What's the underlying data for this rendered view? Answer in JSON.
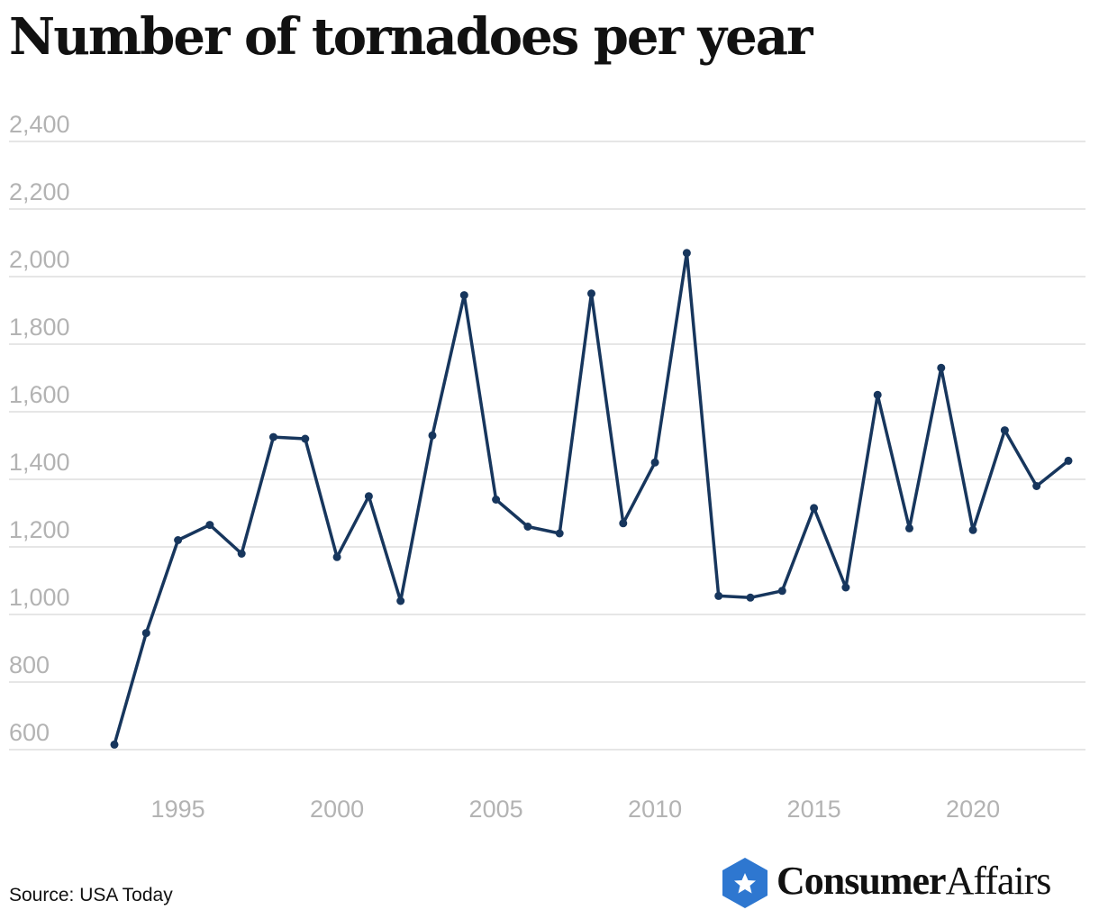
{
  "header": {
    "title": "Number of tornadoes per year"
  },
  "footer": {
    "source": "Source: USA Today"
  },
  "brand": {
    "bold": "Consumer",
    "light": "Affairs",
    "icon": "star-hexagon-icon",
    "color": "#2e77d0"
  },
  "colors": {
    "line": "#17365d",
    "grid": "#dddddd",
    "tick": "#b3b3b3"
  },
  "chart_data": {
    "type": "line",
    "title": "Number of tornadoes per year",
    "xlabel": "",
    "ylabel": "",
    "ylim": [
      550,
      2400
    ],
    "xlim": [
      1990.7,
      2023.5
    ],
    "y_ticks": [
      600,
      800,
      1000,
      1200,
      1400,
      1600,
      1800,
      2000,
      2200,
      2400
    ],
    "y_tick_labels": [
      "600",
      "800",
      "1,000",
      "1,200",
      "1,400",
      "1,600",
      "1,800",
      "2,000",
      "2,200",
      "2,400"
    ],
    "x_ticks": [
      1995,
      2000,
      2005,
      2010,
      2015,
      2020
    ],
    "x_tick_labels": [
      "1995",
      "2000",
      "2005",
      "2010",
      "2015",
      "2020"
    ],
    "grid": true,
    "legend": "none",
    "series": [
      {
        "x": [
          1993,
          1994,
          1995,
          1996,
          1997,
          1998,
          1999,
          2000,
          2001,
          2002,
          2003,
          2004,
          2005,
          2006,
          2007,
          2008,
          2009,
          2010,
          2011,
          2012,
          2013,
          2014,
          2015,
          2016,
          2017,
          2018,
          2019,
          2020,
          2021,
          2022,
          2023
        ],
        "values": [
          615,
          945,
          1220,
          1265,
          1180,
          1525,
          1520,
          1170,
          1350,
          1040,
          1530,
          1945,
          1340,
          1260,
          1240,
          1950,
          1270,
          1450,
          2070,
          1055,
          1050,
          1070,
          1315,
          1080,
          1650,
          1255,
          1730,
          1250,
          1545,
          1380,
          1455
        ]
      }
    ]
  }
}
